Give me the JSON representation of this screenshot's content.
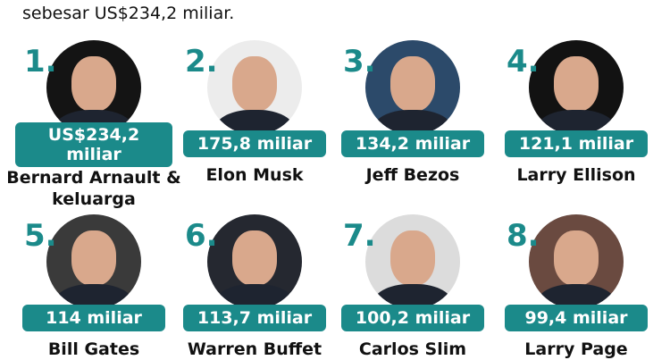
{
  "header": "sebesar US$234,2 miliar.",
  "accent": "#1b8a8a",
  "people": [
    {
      "rank": "1.",
      "worth": "US$234,2 miliar",
      "name": "Bernard Arnault & keluarga",
      "bg": "#141414"
    },
    {
      "rank": "2.",
      "worth": "175,8 miliar",
      "name": "Elon Musk",
      "bg": "#ececec"
    },
    {
      "rank": "3.",
      "worth": "134,2 miliar",
      "name": "Jeff Bezos",
      "bg": "#2c4a6a"
    },
    {
      "rank": "4.",
      "worth": "121,1 miliar",
      "name": "Larry Ellison",
      "bg": "#121212"
    },
    {
      "rank": "5.",
      "worth": "114 miliar",
      "name": "Bill Gates",
      "bg": "#3a3a3a"
    },
    {
      "rank": "6.",
      "worth": "113,7 miliar",
      "name": "Warren Buffet",
      "bg": "#252830"
    },
    {
      "rank": "7.",
      "worth": "100,2 miliar",
      "name": "Carlos Slim",
      "bg": "#dcdcdc"
    },
    {
      "rank": "8.",
      "worth": "99,4 miliar",
      "name": "Larry Page",
      "bg": "#6a4a40"
    }
  ]
}
